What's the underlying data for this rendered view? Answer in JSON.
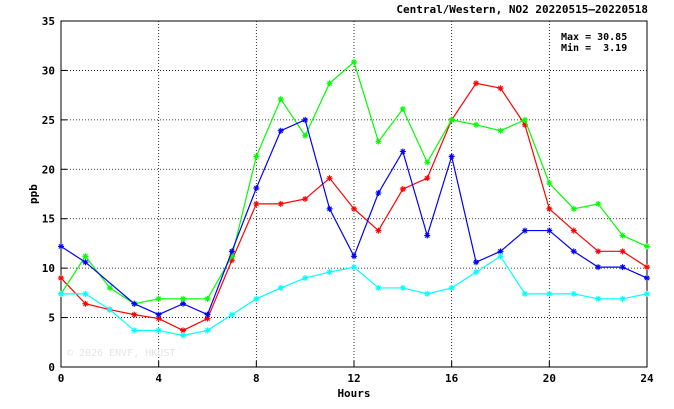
{
  "chart_data": {
    "type": "line",
    "title": "Central/Western, NO2 20220515–20220518",
    "xlabel": "Hours",
    "ylabel": "ppb",
    "xlim": [
      0,
      24
    ],
    "ylim": [
      0,
      35
    ],
    "xticks": [
      0,
      4,
      8,
      12,
      16,
      20,
      24
    ],
    "yticks": [
      0,
      5,
      10,
      15,
      20,
      25,
      30,
      35
    ],
    "grid": true,
    "max_label": "Max = 30.85",
    "min_label": "Min =  3.19",
    "watermark": "© 2026  ENVF, HKUST",
    "x": [
      0,
      1,
      2,
      3,
      4,
      5,
      6,
      7,
      8,
      9,
      10,
      11,
      12,
      13,
      14,
      15,
      16,
      17,
      18,
      19,
      20,
      21,
      22,
      23,
      24
    ],
    "series": [
      {
        "color": "#ff0000",
        "values": [
          9.0,
          6.4,
          5.8,
          5.3,
          4.9,
          3.7,
          4.9,
          10.8,
          16.5,
          16.5,
          17.0,
          19.1,
          16.0,
          13.8,
          18.0,
          19.1,
          25.0,
          28.7,
          28.2,
          24.5,
          16.0,
          13.8,
          11.7,
          11.7,
          10.1
        ]
      },
      {
        "color": "#00ff00",
        "values": [
          7.4,
          11.2,
          8.0,
          6.4,
          6.9,
          6.9,
          6.9,
          11.2,
          21.3,
          27.1,
          23.4,
          28.7,
          30.85,
          22.8,
          26.1,
          20.7,
          25.0,
          24.5,
          23.9,
          25.0,
          18.6,
          16.0,
          16.5,
          13.3,
          12.2
        ]
      },
      {
        "color": "#0000ff",
        "values": [
          12.2,
          10.6,
          null,
          6.4,
          5.3,
          6.4,
          5.3,
          11.7,
          18.1,
          23.9,
          25.0,
          16.0,
          11.2,
          17.6,
          21.8,
          13.3,
          21.3,
          10.6,
          11.7,
          13.8,
          13.8,
          11.7,
          10.1,
          10.1,
          9.0
        ]
      },
      {
        "color": "#00ffff",
        "values": [
          7.4,
          7.4,
          5.8,
          3.7,
          3.7,
          3.19,
          3.7,
          5.3,
          6.9,
          8.0,
          9.0,
          9.6,
          10.1,
          8.0,
          8.0,
          7.4,
          8.0,
          9.6,
          11.2,
          7.4,
          7.4,
          7.4,
          6.9,
          6.9,
          7.4
        ]
      }
    ]
  }
}
